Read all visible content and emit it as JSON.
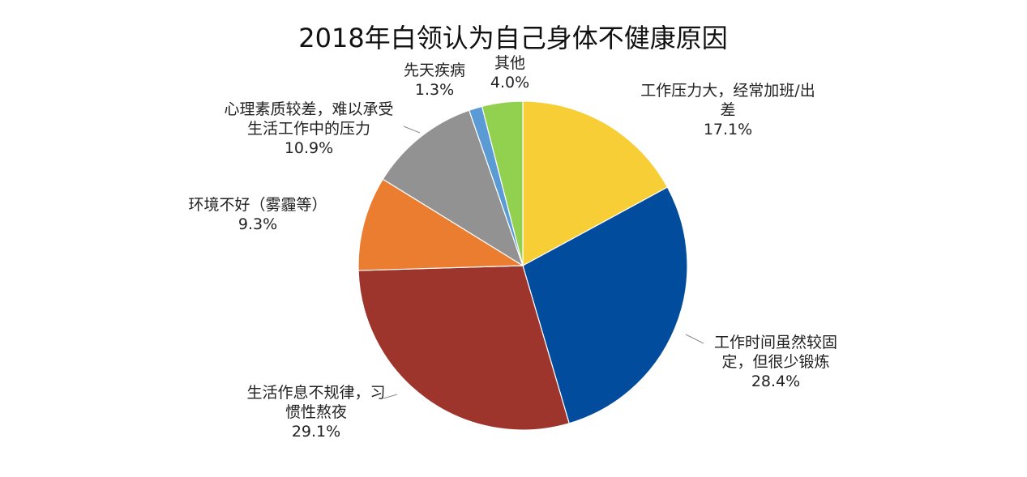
{
  "chart_data": {
    "type": "pie",
    "title": "2018年白领认为自己身体不健康原因",
    "start": "12 o'clock",
    "direction": "clockwise",
    "slices": [
      {
        "name": "工作压力大，经常加班/出差",
        "label_lines": [
          "工作压力大，经常加班/出",
          "差"
        ],
        "value": 17.1,
        "label_value": "17.1%",
        "color": "#F7CE35"
      },
      {
        "name": "工作时间虽然较固定，但很少锻炼",
        "label_lines": [
          "工作时间虽然较固",
          "定，但很少锻炼"
        ],
        "value": 28.4,
        "label_value": "28.4%",
        "color": "#024C9E"
      },
      {
        "name": "生活作息不规律，习惯性熬夜",
        "label_lines": [
          "生活作息不规律，习",
          "惯性熬夜"
        ],
        "value": 29.1,
        "label_value": "29.1%",
        "color": "#9D352D"
      },
      {
        "name": "环境不好（雾霾等）",
        "label_lines": [
          "环境不好（雾霾等）"
        ],
        "value": 9.3,
        "label_value": "9.3%",
        "color": "#EB7D31"
      },
      {
        "name": "心理素质较差，难以承受生活工作中的压力",
        "label_lines": [
          "心理素质较差，难以承受",
          "生活工作中的压力"
        ],
        "value": 10.9,
        "label_value": "10.9%",
        "color": "#929292"
      },
      {
        "name": "先天疾病",
        "label_lines": [
          "先天疾病"
        ],
        "value": 1.3,
        "label_value": "1.3%",
        "color": "#5B9BD5"
      },
      {
        "name": "其他",
        "label_lines": [
          "其他"
        ],
        "value": 4.0,
        "label_value": "4.0%",
        "color": "#92D050"
      }
    ]
  }
}
